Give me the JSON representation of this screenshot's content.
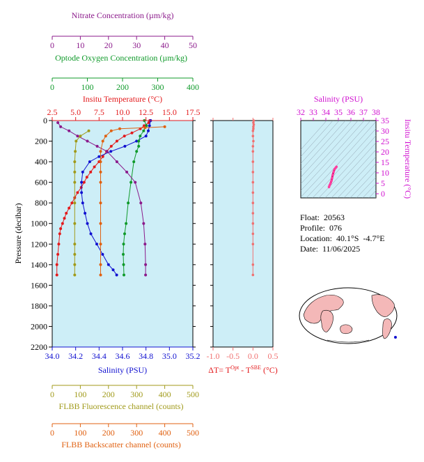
{
  "colors": {
    "nitrate": "#8b1a8b",
    "oxygen": "#0f9a2a",
    "temperature": "#e31a1c",
    "salinity": "#1010d0",
    "fluorescence": "#a09a1a",
    "backscatter": "#e06010",
    "delta_t": "#f07070",
    "ts_axis": "#d010d0",
    "plot_bg": "#cdeef7"
  },
  "axes": {
    "nitrate_label": "Nitrate Concentration (µm/kg)",
    "oxygen_label": "Optode Oxygen Concentration (µm/kg)",
    "temperature_label": "Insitu Temperature (°C)",
    "salinity_label": "Salinity (PSU)",
    "pressure_label": "Pressure (decibar)",
    "fluorescence_label": "FLBB Fluorescence channel (counts)",
    "backscatter_label": "FLBB Backscatter channel (counts)",
    "delta_t_label": "ΔT= T",
    "delta_t_sup1": "Opt",
    "delta_t_mid": " - T",
    "delta_t_sup2": "SBE",
    "delta_t_unit": " (°C)",
    "ts_salinity_label": "Salinity (PSU)",
    "ts_temperature_label": "Insitu Temperature (°C)"
  },
  "info": {
    "float_label": "Float:",
    "float_value": "20563",
    "profile_label": "Profile:",
    "profile_value": "076",
    "location_label": "Location:",
    "location_value": "40.1°S  -4.7°E",
    "date_label": "Date:",
    "date_value": "11/06/2025"
  },
  "chart_data": [
    {
      "type": "line",
      "title": "Profile panel",
      "y_axis": {
        "label": "Pressure (decibar)",
        "ylim": [
          2200,
          0
        ],
        "ticks": [
          0,
          200,
          400,
          600,
          800,
          1000,
          1200,
          1400,
          1600,
          1800,
          2000,
          2200
        ]
      },
      "x_axes": {
        "nitrate": {
          "label": "Nitrate Concentration (µm/kg)",
          "xlim": [
            0,
            50
          ],
          "ticks": [
            0,
            10,
            20,
            30,
            40,
            50
          ]
        },
        "oxygen": {
          "label": "Optode Oxygen Concentration (µm/kg)",
          "xlim": [
            0,
            400
          ],
          "ticks": [
            0,
            100,
            200,
            300,
            400
          ]
        },
        "temperature": {
          "label": "Insitu Temperature (°C)",
          "xlim": [
            2.5,
            17.5
          ],
          "ticks": [
            "2.5",
            "5.0",
            "7.5",
            "10.0",
            "12.5",
            "15.0",
            "17.5"
          ]
        },
        "salinity": {
          "label": "Salinity (PSU)",
          "xlim": [
            34.0,
            35.2
          ],
          "ticks": [
            "34.0",
            "34.2",
            "34.4",
            "34.6",
            "34.8",
            "35.0",
            "35.2"
          ]
        },
        "fluorescence": {
          "label": "FLBB Fluorescence channel (counts)",
          "xlim": [
            0,
            500
          ],
          "ticks": [
            0,
            100,
            200,
            300,
            400,
            500
          ]
        },
        "backscatter": {
          "label": "FLBB Backscatter channel (counts)",
          "xlim": [
            0,
            500
          ],
          "ticks": [
            0,
            100,
            200,
            300,
            400,
            500
          ]
        }
      },
      "series": [
        {
          "key": "temperature",
          "x": [
            12.9,
            12.8,
            12.3,
            11.9,
            11.0,
            10.2,
            9.4,
            8.8,
            8.3,
            7.9,
            7.5,
            7.0,
            6.6,
            6.2,
            5.9,
            5.6,
            5.2,
            4.9,
            4.6,
            4.3,
            4.0,
            3.8,
            3.6,
            3.4,
            3.3,
            3.2,
            3.1,
            3.0,
            3.0
          ],
          "y": [
            0,
            20,
            50,
            80,
            120,
            150,
            200,
            250,
            300,
            350,
            400,
            450,
            500,
            550,
            600,
            650,
            700,
            750,
            800,
            850,
            900,
            950,
            1000,
            1050,
            1100,
            1200,
            1300,
            1400,
            1500
          ]
        },
        {
          "key": "salinity",
          "x": [
            34.84,
            34.83,
            34.82,
            34.8,
            34.72,
            34.62,
            34.5,
            34.4,
            34.32,
            34.26,
            34.25,
            34.25,
            34.26,
            34.28,
            34.3,
            34.33,
            34.38,
            34.43,
            34.48,
            34.52,
            34.55
          ],
          "y": [
            0,
            50,
            100,
            150,
            200,
            250,
            300,
            350,
            400,
            500,
            600,
            700,
            800,
            900,
            1000,
            1100,
            1200,
            1300,
            1400,
            1450,
            1500
          ]
        },
        {
          "key": "oxygen",
          "x": [
            262,
            268,
            260,
            250,
            246,
            246,
            240,
            232,
            224,
            216,
            210,
            206,
            203,
            202,
            203,
            204
          ],
          "y": [
            0,
            50,
            100,
            150,
            200,
            250,
            300,
            400,
            600,
            800,
            1000,
            1100,
            1200,
            1300,
            1400,
            1500
          ]
        },
        {
          "key": "nitrate",
          "x": [
            2.0,
            3.0,
            6.0,
            9.0,
            12.5,
            16.0,
            19.5,
            23.0,
            26.5,
            29.5,
            31.5,
            32.5,
            33.0,
            33.2,
            33.2
          ],
          "y": [
            20,
            60,
            100,
            150,
            200,
            250,
            300,
            400,
            500,
            600,
            800,
            1000,
            1200,
            1400,
            1500
          ]
        },
        {
          "key": "fluorescence",
          "x": [
            130,
            100,
            85,
            82,
            80,
            80,
            80,
            80,
            80,
            80,
            80,
            80,
            80
          ],
          "y": [
            100,
            150,
            200,
            300,
            400,
            500,
            600,
            800,
            1000,
            1200,
            1300,
            1400,
            1500
          ]
        },
        {
          "key": "backscatter",
          "x": [
            400,
            330,
            240,
            210,
            190,
            180,
            172,
            172,
            172,
            172,
            172,
            172,
            172,
            172,
            172
          ],
          "y": [
            60,
            70,
            80,
            100,
            150,
            200,
            300,
            400,
            500,
            600,
            800,
            1000,
            1200,
            1400,
            1500
          ]
        }
      ]
    },
    {
      "type": "line",
      "title": "Delta T panel",
      "x_axis": {
        "label": "ΔT= TOpt - TSBE (°C)",
        "xlim": [
          -1.0,
          0.5
        ],
        "ticks": [
          "-1.0",
          "-0.5",
          "0.0",
          "0.5"
        ]
      },
      "y_axis": {
        "ylim": [
          2200,
          0
        ]
      },
      "series": [
        {
          "name": "ΔT",
          "x": [
            0.02,
            0.01,
            0.02,
            0.01,
            0.01,
            0.0,
            0.0,
            0.01,
            0.0,
            0.0,
            0.0,
            0.0,
            0.0,
            0.0,
            0.0,
            0.0,
            0.0,
            0.0,
            0.0,
            0.0,
            0.0
          ],
          "y": [
            0,
            20,
            40,
            60,
            80,
            100,
            150,
            200,
            250,
            300,
            400,
            500,
            600,
            700,
            800,
            900,
            1000,
            1100,
            1200,
            1400,
            1500
          ]
        }
      ]
    },
    {
      "type": "scatter",
      "title": "T-S diagram",
      "x_axis": {
        "label": "Salinity (PSU)",
        "xlim": [
          32,
          38
        ],
        "ticks": [
          32,
          33,
          34,
          35,
          36,
          37,
          38
        ]
      },
      "y_axis": {
        "label": "Insitu Temperature (°C)",
        "ylim": [
          -2,
          35
        ],
        "ticks": [
          0,
          5,
          10,
          15,
          20,
          25,
          30,
          35
        ]
      },
      "series": [
        {
          "name": "T-S",
          "x": [
            34.25,
            34.3,
            34.38,
            34.45,
            34.5,
            34.55,
            34.62,
            34.7,
            34.8,
            34.85
          ],
          "y": [
            3.2,
            4.0,
            5.0,
            6.2,
            7.5,
            9.0,
            10.5,
            11.8,
            12.5,
            12.9
          ]
        }
      ]
    }
  ]
}
